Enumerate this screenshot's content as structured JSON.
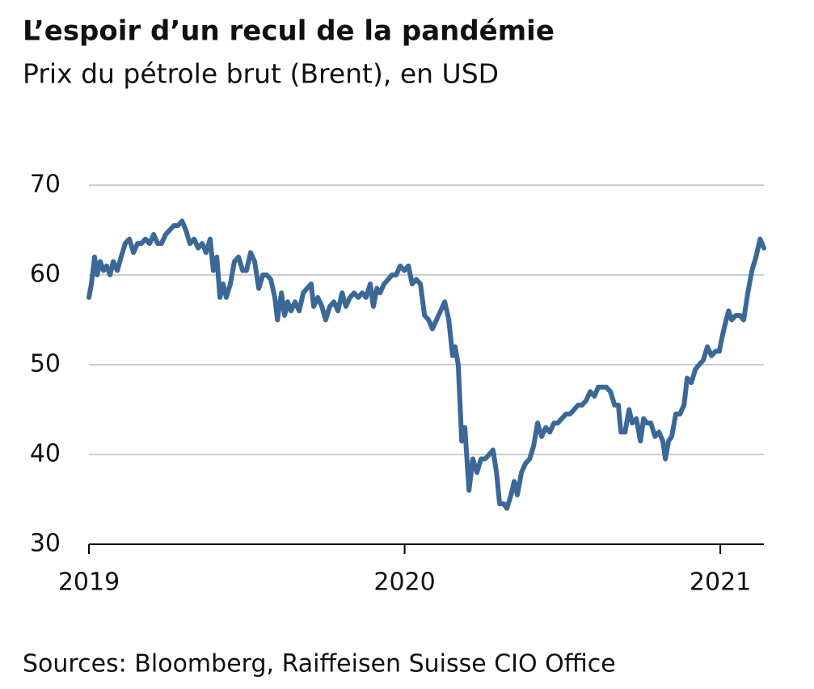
{
  "chart_data": {
    "type": "line",
    "title": "L’espoir d’un recul de la pandémie",
    "subtitle": "Prix du pétrole brut (Brent), en USD",
    "source": "Sources: Bloomberg, Raiffeisen Suisse CIO Office",
    "color": "#3b6897",
    "grid": true,
    "xlim": [
      2019,
      2021.138
    ],
    "xticks": [
      2019,
      2020,
      2021
    ],
    "ylim": [
      30,
      70
    ],
    "yticks": [
      30,
      40,
      50,
      60,
      70
    ],
    "x": [
      2019.0,
      2019.008,
      2019.018,
      2019.026,
      2019.036,
      2019.046,
      2019.056,
      2019.067,
      2019.077,
      2019.09,
      2019.102,
      2019.115,
      2019.128,
      2019.141,
      2019.154,
      2019.166,
      2019.179,
      2019.192,
      2019.205,
      2019.218,
      2019.23,
      2019.243,
      2019.256,
      2019.269,
      2019.282,
      2019.295,
      2019.307,
      2019.32,
      2019.333,
      2019.346,
      2019.359,
      2019.371,
      2019.384,
      2019.394,
      2019.405,
      2019.415,
      2019.425,
      2019.435,
      2019.448,
      2019.461,
      2019.474,
      2019.487,
      2019.499,
      2019.512,
      2019.525,
      2019.538,
      2019.551,
      2019.563,
      2019.576,
      2019.589,
      2019.597,
      2019.61,
      2019.62,
      2019.63,
      2019.64,
      2019.653,
      2019.666,
      2019.679,
      2019.691,
      2019.704,
      2019.712,
      2019.725,
      2019.738,
      2019.75,
      2019.763,
      2019.776,
      2019.789,
      2019.802,
      2019.814,
      2019.827,
      2019.84,
      2019.853,
      2019.866,
      2019.878,
      2019.891,
      2019.901,
      2019.912,
      2019.922,
      2019.935,
      2019.948,
      2019.96,
      2019.973,
      2019.986,
      2019.999,
      2020.012,
      2020.024,
      2020.037,
      2020.05,
      2020.063,
      2020.076,
      2020.088,
      2020.101,
      2020.114,
      2020.127,
      2020.14,
      2020.152,
      2020.16,
      2020.17,
      2020.181,
      2020.191,
      2020.204,
      2020.216,
      2020.229,
      2020.242,
      2020.255,
      2020.268,
      2020.28,
      2020.291,
      2020.301,
      2020.314,
      2020.324,
      2020.337,
      2020.347,
      2020.357,
      2020.37,
      2020.383,
      2020.396,
      2020.409,
      2020.421,
      2020.434,
      2020.447,
      2020.46,
      2020.473,
      2020.485,
      2020.498,
      2020.511,
      2020.524,
      2020.537,
      2020.549,
      2020.562,
      2020.575,
      2020.588,
      2020.601,
      2020.613,
      2020.626,
      2020.639,
      2020.652,
      2020.665,
      2020.677,
      2020.685,
      2020.698,
      2020.711,
      2020.721,
      2020.734,
      2020.747,
      2020.757,
      2020.767,
      2020.78,
      2020.793,
      2020.806,
      2020.818,
      2020.826,
      2020.836,
      2020.846,
      2020.859,
      2020.872,
      2020.885,
      2020.895,
      2020.908,
      2020.921,
      2020.933,
      2020.946,
      2020.959,
      2020.972,
      2020.985,
      2020.997,
      2021.005,
      2021.015,
      2021.026,
      2021.036,
      2021.049,
      2021.062,
      2021.074,
      2021.087,
      2021.1,
      2021.113,
      2021.126,
      2021.138
    ],
    "values": [
      57.5,
      59,
      62,
      60,
      61.5,
      60.5,
      61,
      60,
      61.5,
      60.5,
      62,
      63.5,
      64,
      62.5,
      63.5,
      63.5,
      64,
      63.5,
      64.5,
      63.5,
      63.5,
      64.5,
      65,
      65.5,
      65.5,
      66,
      65,
      63.5,
      64,
      63,
      63.5,
      62.5,
      64,
      60.5,
      62,
      57.5,
      59,
      57.5,
      59,
      61.5,
      62,
      60.5,
      60.5,
      62.5,
      61.5,
      58.5,
      60,
      60,
      59.5,
      57.5,
      55,
      58,
      55.5,
      57,
      56,
      57,
      56,
      58,
      58.5,
      59,
      56.5,
      57.5,
      56.5,
      55,
      56.5,
      57,
      56,
      58,
      56.5,
      57.5,
      58,
      57.5,
      58,
      57.5,
      59,
      56.5,
      58.5,
      58,
      59,
      59.5,
      60,
      60,
      61,
      60.5,
      61,
      59,
      59.5,
      59,
      55.5,
      55,
      54,
      55,
      56,
      57,
      55,
      51,
      52,
      50,
      41.5,
      43,
      36,
      39.5,
      38,
      39.5,
      39.5,
      40,
      40.5,
      38,
      34.5,
      34.5,
      34,
      35.5,
      37,
      35.5,
      38,
      39,
      39.5,
      41,
      43.5,
      42,
      43,
      42.5,
      43.5,
      43.5,
      44,
      44.5,
      44.5,
      45,
      45.5,
      45.5,
      46,
      47,
      46.5,
      47.5,
      47.5,
      47.5,
      47,
      45.5,
      45.5,
      42.5,
      42.5,
      45,
      43.5,
      44,
      41.5,
      44,
      43.5,
      43.5,
      42,
      42.5,
      41.5,
      39.5,
      41.5,
      42,
      44.5,
      44.5,
      45.5,
      48.5,
      48,
      49.5,
      50,
      50.5,
      52,
      51,
      51.5,
      51.5,
      53,
      54.5,
      56,
      55,
      55.5,
      55.5,
      55,
      58,
      60.5,
      62,
      64,
      63
    ]
  }
}
